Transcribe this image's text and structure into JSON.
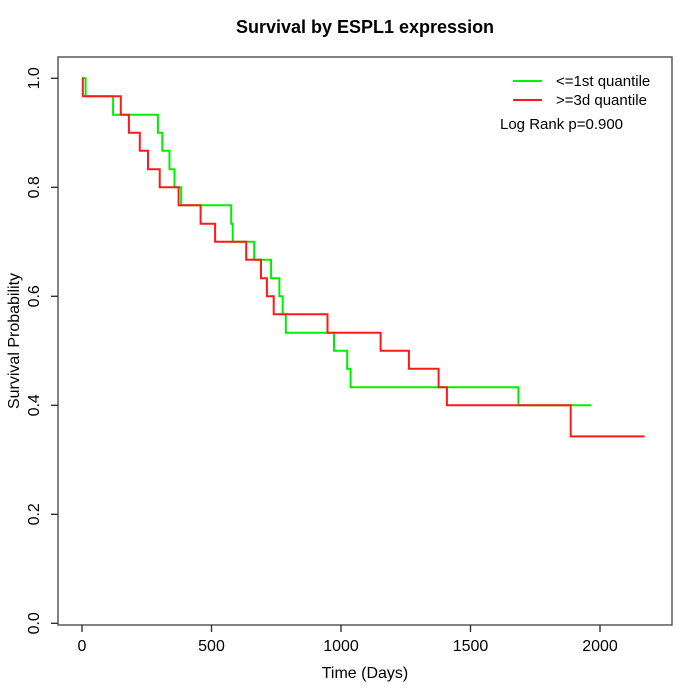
{
  "chart_data": {
    "type": "line",
    "subtype": "kaplan-meier-step",
    "title": "Survival by ESPL1 expression",
    "xlabel": "Time (Days)",
    "ylabel": "Survival Probability",
    "xticks": [
      0,
      500,
      1000,
      1500,
      2000
    ],
    "yticks": [
      0.0,
      0.2,
      0.4,
      0.6,
      0.8,
      1.0
    ],
    "xlim": [
      0,
      2250
    ],
    "ylim": [
      0.0,
      1.0
    ],
    "grid": false,
    "legend_position": "top-right",
    "annotation": "Log Rank p=0.900",
    "frame_color": "#4d4d4d",
    "tick_color": "#333333",
    "series": [
      {
        "name": "<=1st quantile",
        "color": "#00ee00",
        "start": [
          0,
          1.0
        ],
        "end_time": 1967,
        "steps": [
          [
            14,
            0.967
          ],
          [
            120,
            0.933
          ],
          [
            293,
            0.9
          ],
          [
            310,
            0.867
          ],
          [
            338,
            0.833
          ],
          [
            357,
            0.8
          ],
          [
            383,
            0.767
          ],
          [
            576,
            0.733
          ],
          [
            582,
            0.7
          ],
          [
            665,
            0.667
          ],
          [
            730,
            0.633
          ],
          [
            762,
            0.6
          ],
          [
            775,
            0.567
          ],
          [
            787,
            0.533
          ],
          [
            973,
            0.5
          ],
          [
            1024,
            0.467
          ],
          [
            1037,
            0.433
          ],
          [
            1685,
            0.4
          ]
        ]
      },
      {
        "name": ">=3d quantile",
        "color": "#ff1a1a",
        "start": [
          0,
          1.0
        ],
        "end_time": 2172,
        "steps": [
          [
            3,
            0.967
          ],
          [
            150,
            0.933
          ],
          [
            181,
            0.9
          ],
          [
            223,
            0.867
          ],
          [
            255,
            0.833
          ],
          [
            300,
            0.8
          ],
          [
            373,
            0.767
          ],
          [
            458,
            0.733
          ],
          [
            514,
            0.7
          ],
          [
            634,
            0.667
          ],
          [
            691,
            0.633
          ],
          [
            714,
            0.6
          ],
          [
            740,
            0.567
          ],
          [
            948,
            0.533
          ],
          [
            1153,
            0.5
          ],
          [
            1262,
            0.467
          ],
          [
            1377,
            0.433
          ],
          [
            1409,
            0.4
          ],
          [
            1887,
            0.343
          ]
        ]
      }
    ]
  }
}
